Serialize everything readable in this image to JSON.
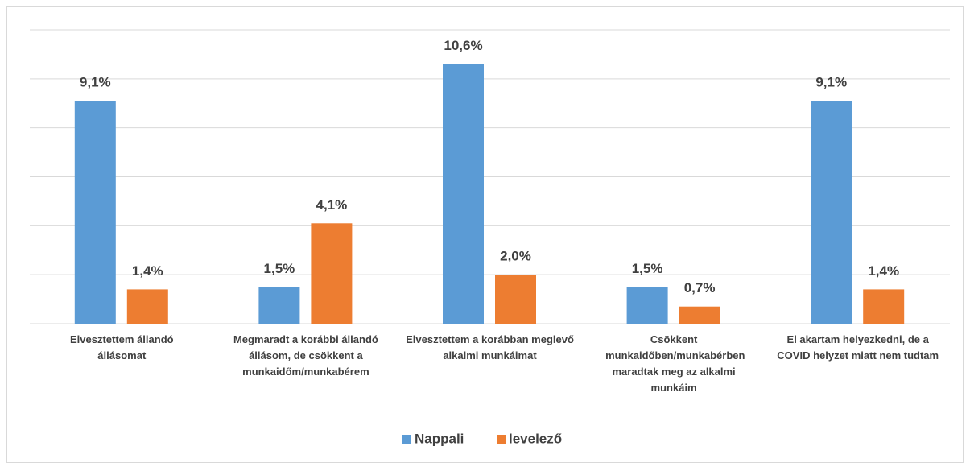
{
  "chart_data": {
    "type": "bar",
    "categories": [
      "Elvesztettem állandó állásomat",
      "Megmaradt a korábbi állandó állásom, de csökkent a munkaidőm/munkabérem",
      "Elvesztettem a korábban meglevő alkalmi munkáimat",
      "Csökkent munkaidőben/munkabérben maradtak meg az alkalmi munkáim",
      "El akartam helyezkedni, de a COVID helyzet miatt nem tudtam"
    ],
    "series": [
      {
        "name": "Nappali",
        "color": "#5b9bd5",
        "values": [
          9.1,
          1.5,
          10.6,
          1.5,
          9.1
        ],
        "value_labels": [
          "9,1%",
          "1,5%",
          "10,6%",
          "1,5%",
          "9,1%"
        ]
      },
      {
        "name": "levelező",
        "color": "#ed7d31",
        "values": [
          1.4,
          4.1,
          2.0,
          0.7,
          1.4
        ],
        "value_labels": [
          "1,4%",
          "4,1%",
          "2,0%",
          "0,7%",
          "1,4%"
        ]
      }
    ],
    "ylim": [
      0,
      12
    ],
    "yticks": [
      0,
      2,
      4,
      6,
      8,
      10,
      12
    ],
    "grid": true,
    "legend": "bottom"
  }
}
